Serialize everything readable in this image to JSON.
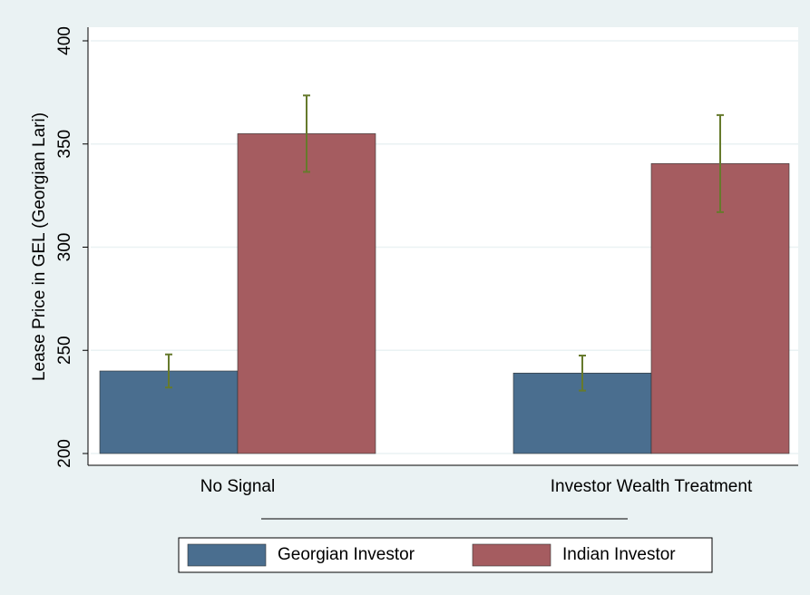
{
  "chart_data": {
    "type": "bar",
    "ylabel": "Lease Price in GEL (Georgian Lari)",
    "categories": [
      "No Signal",
      "Investor Wealth Treatment"
    ],
    "series": [
      {
        "name": "Georgian Investor",
        "color": "#4a6e8f",
        "values": [
          240,
          239
        ],
        "errors": [
          8,
          8.5
        ]
      },
      {
        "name": "Indian Investor",
        "color": "#a55c60",
        "values": [
          355,
          340.5
        ],
        "errors": [
          18.5,
          23.5
        ]
      }
    ],
    "error_color": "#667a2c",
    "ylim": [
      200,
      400
    ],
    "yticks": [
      200,
      250,
      300,
      350,
      400
    ],
    "grid": true
  }
}
